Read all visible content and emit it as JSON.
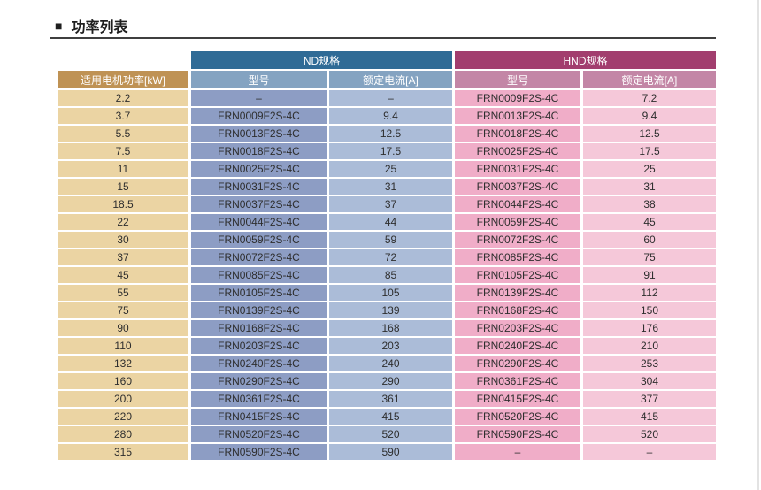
{
  "page": {
    "title_marker": "■",
    "title": "功率列表"
  },
  "table": {
    "group_headers": [
      "ND规格",
      "HND规格"
    ],
    "power_header": "适用电机功率[kW]",
    "nd_sub_headers": [
      "型号",
      "额定电流[A]"
    ],
    "hnd_sub_headers": [
      "型号",
      "额定电流[A]"
    ],
    "rows": [
      {
        "kw": "2.2",
        "nd_model": "–",
        "nd_current": "–",
        "hnd_model": "FRN0009F2S-4C",
        "hnd_current": "7.2"
      },
      {
        "kw": "3.7",
        "nd_model": "FRN0009F2S-4C",
        "nd_current": "9.4",
        "hnd_model": "FRN0013F2S-4C",
        "hnd_current": "9.4"
      },
      {
        "kw": "5.5",
        "nd_model": "FRN0013F2S-4C",
        "nd_current": "12.5",
        "hnd_model": "FRN0018F2S-4C",
        "hnd_current": "12.5"
      },
      {
        "kw": "7.5",
        "nd_model": "FRN0018F2S-4C",
        "nd_current": "17.5",
        "hnd_model": "FRN0025F2S-4C",
        "hnd_current": "17.5"
      },
      {
        "kw": "11",
        "nd_model": "FRN0025F2S-4C",
        "nd_current": "25",
        "hnd_model": "FRN0031F2S-4C",
        "hnd_current": "25"
      },
      {
        "kw": "15",
        "nd_model": "FRN0031F2S-4C",
        "nd_current": "31",
        "hnd_model": "FRN0037F2S-4C",
        "hnd_current": "31"
      },
      {
        "kw": "18.5",
        "nd_model": "FRN0037F2S-4C",
        "nd_current": "37",
        "hnd_model": "FRN0044F2S-4C",
        "hnd_current": "38"
      },
      {
        "kw": "22",
        "nd_model": "FRN0044F2S-4C",
        "nd_current": "44",
        "hnd_model": "FRN0059F2S-4C",
        "hnd_current": "45"
      },
      {
        "kw": "30",
        "nd_model": "FRN0059F2S-4C",
        "nd_current": "59",
        "hnd_model": "FRN0072F2S-4C",
        "hnd_current": "60"
      },
      {
        "kw": "37",
        "nd_model": "FRN0072F2S-4C",
        "nd_current": "72",
        "hnd_model": "FRN0085F2S-4C",
        "hnd_current": "75"
      },
      {
        "kw": "45",
        "nd_model": "FRN0085F2S-4C",
        "nd_current": "85",
        "hnd_model": "FRN0105F2S-4C",
        "hnd_current": "91"
      },
      {
        "kw": "55",
        "nd_model": "FRN0105F2S-4C",
        "nd_current": "105",
        "hnd_model": "FRN0139F2S-4C",
        "hnd_current": "112"
      },
      {
        "kw": "75",
        "nd_model": "FRN0139F2S-4C",
        "nd_current": "139",
        "hnd_model": "FRN0168F2S-4C",
        "hnd_current": "150"
      },
      {
        "kw": "90",
        "nd_model": "FRN0168F2S-4C",
        "nd_current": "168",
        "hnd_model": "FRN0203F2S-4C",
        "hnd_current": "176"
      },
      {
        "kw": "110",
        "nd_model": "FRN0203F2S-4C",
        "nd_current": "203",
        "hnd_model": "FRN0240F2S-4C",
        "hnd_current": "210"
      },
      {
        "kw": "132",
        "nd_model": "FRN0240F2S-4C",
        "nd_current": "240",
        "hnd_model": "FRN0290F2S-4C",
        "hnd_current": "253"
      },
      {
        "kw": "160",
        "nd_model": "FRN0290F2S-4C",
        "nd_current": "290",
        "hnd_model": "FRN0361F2S-4C",
        "hnd_current": "304"
      },
      {
        "kw": "200",
        "nd_model": "FRN0361F2S-4C",
        "nd_current": "361",
        "hnd_model": "FRN0415F2S-4C",
        "hnd_current": "377"
      },
      {
        "kw": "220",
        "nd_model": "FRN0415F2S-4C",
        "nd_current": "415",
        "hnd_model": "FRN0520F2S-4C",
        "hnd_current": "415"
      },
      {
        "kw": "280",
        "nd_model": "FRN0520F2S-4C",
        "nd_current": "520",
        "hnd_model": "FRN0590F2S-4C",
        "hnd_current": "520"
      },
      {
        "kw": "315",
        "nd_model": "FRN0590F2S-4C",
        "nd_current": "590",
        "hnd_model": "–",
        "hnd_current": "–"
      }
    ]
  },
  "colors": {
    "page_bg": "#ffffff",
    "title_text": "#1f1f1f",
    "rule_color": "#3f3f3f",
    "nd_group": "#2f6b96",
    "hnd_group": "#a23e6e",
    "nd_sub": "#84a3c1",
    "hnd_sub": "#c386a6",
    "power_header": "#bf9254",
    "power_cell": "#ebd4a3",
    "nd_model_cell": "#8d9dc4",
    "nd_current_cell": "#abbcd8",
    "hnd_model_cell": "#f0adc8",
    "hnd_current_cell": "#f5c8d9",
    "data_text": "#2e2e2e",
    "header_text": "#ffffff",
    "edge_line": "#d0d0d0"
  }
}
